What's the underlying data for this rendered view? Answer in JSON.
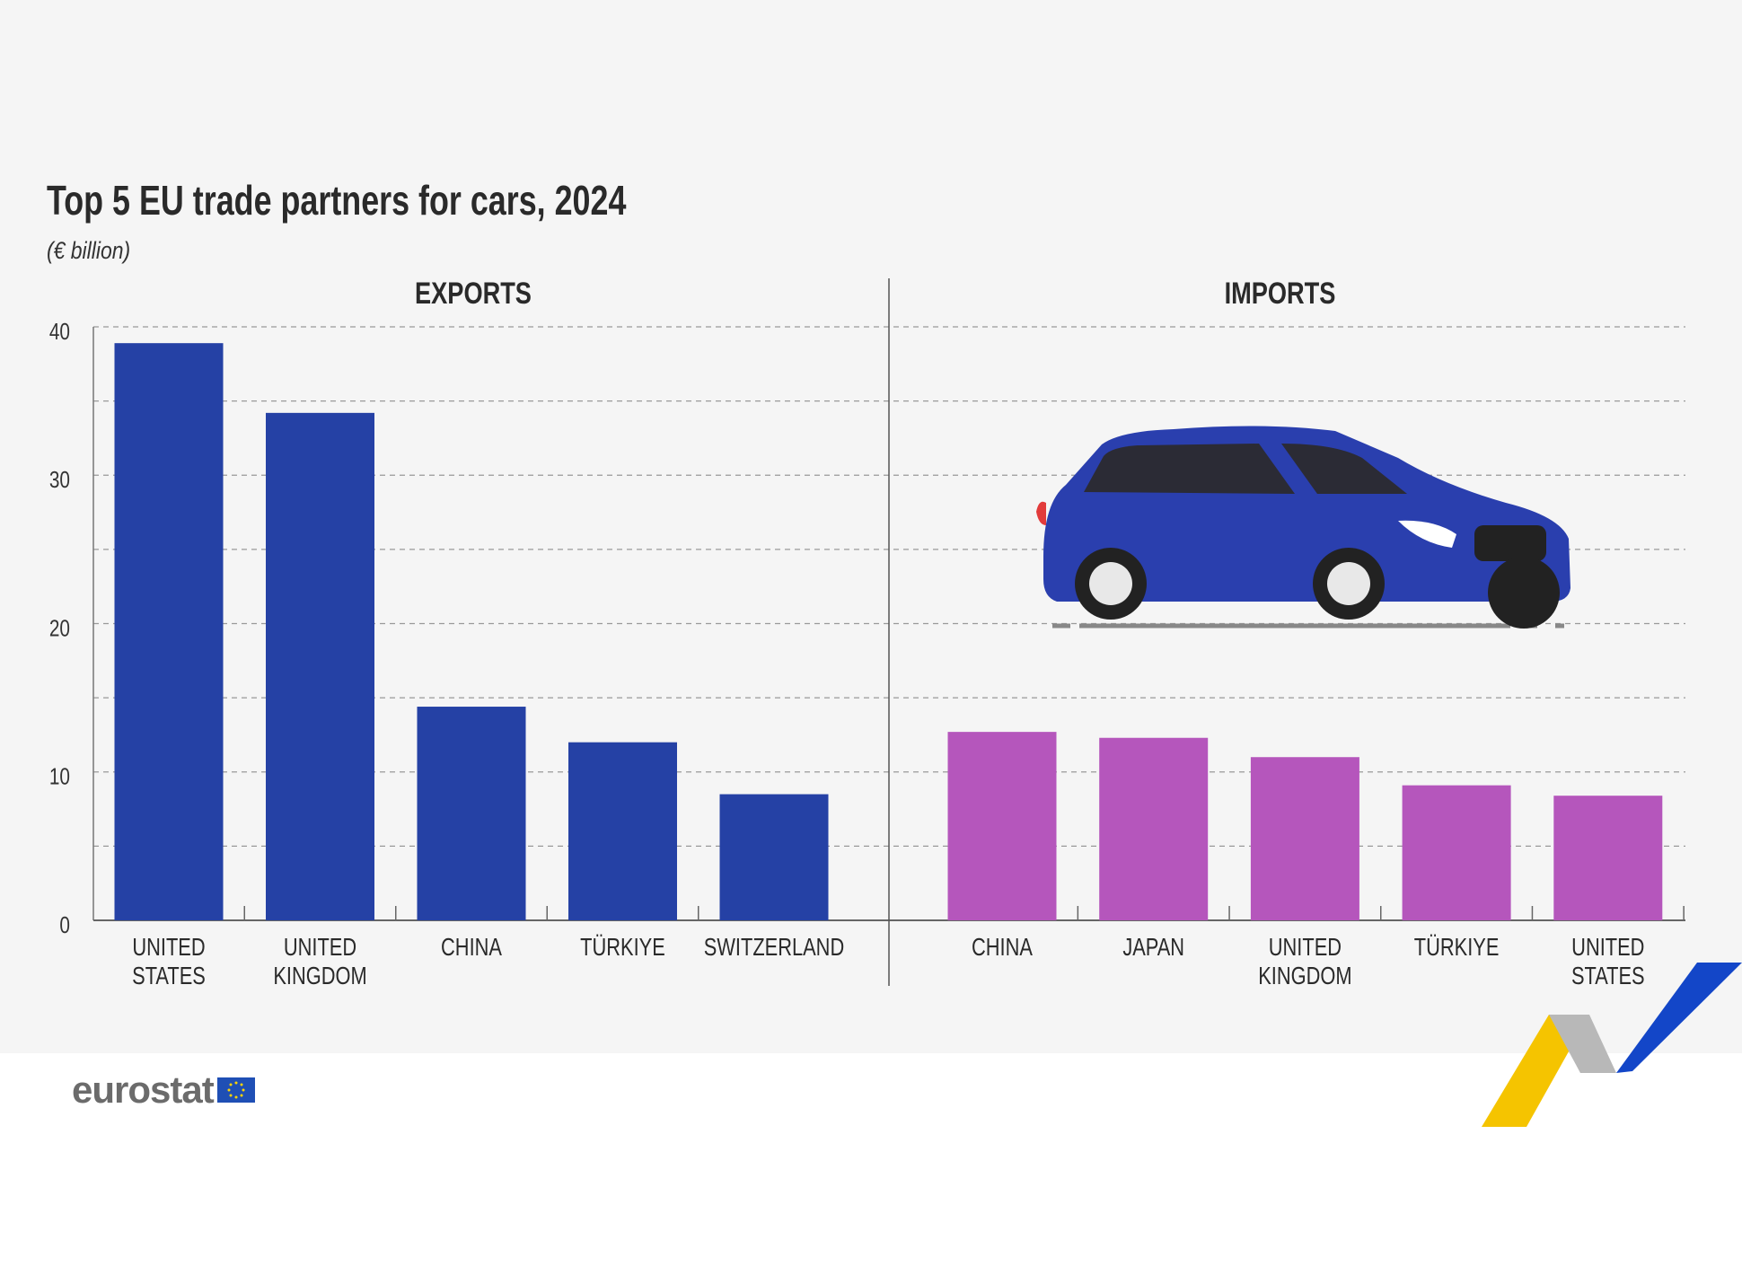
{
  "chart_data": {
    "type": "bar",
    "title": "Top 5 EU trade partners for cars, 2024",
    "subtitle": "(€ billion)",
    "ylim": [
      0,
      40
    ],
    "yticks": [
      0,
      10,
      20,
      30,
      40
    ],
    "grid": true,
    "panels": [
      {
        "name": "EXPORTS",
        "color": "#2541a5",
        "categories": [
          [
            "UNITED",
            "STATES"
          ],
          [
            "UNITED",
            "KINGDOM"
          ],
          [
            "CHINA"
          ],
          [
            "TÜRKIYE"
          ],
          [
            "SWITZERLAND"
          ]
        ],
        "values": [
          38.9,
          34.2,
          14.4,
          12.0,
          8.5
        ]
      },
      {
        "name": "IMPORTS",
        "color": "#b556bc",
        "categories": [
          [
            "CHINA"
          ],
          [
            "JAPAN"
          ],
          [
            "UNITED",
            "KINGDOM"
          ],
          [
            "TÜRKIYE"
          ],
          [
            "UNITED",
            "STATES"
          ]
        ],
        "values": [
          12.7,
          12.3,
          11.0,
          9.1,
          8.4
        ]
      }
    ]
  },
  "footer": {
    "logo": "eurostat",
    "flag_icon": "eu-flag-icon"
  },
  "illustration": {
    "icon": "car-icon",
    "color": "#2a3fae"
  }
}
